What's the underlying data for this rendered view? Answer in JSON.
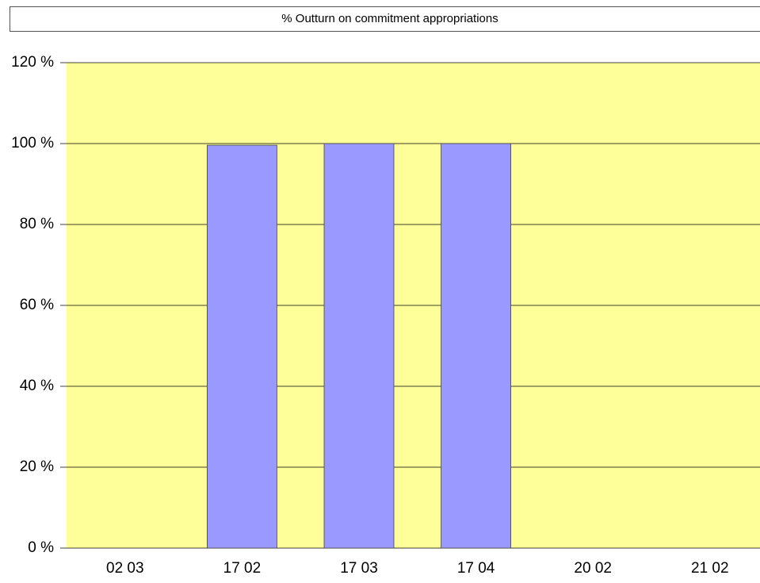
{
  "chart_data": {
    "type": "bar",
    "title": "% Outturn on commitment appropriations",
    "categories": [
      "02 03",
      "17 02",
      "17 03",
      "17 04",
      "20 02",
      "21 02"
    ],
    "values": [
      0,
      99.6,
      100,
      100,
      0,
      0
    ],
    "color": "#9999ff",
    "ylim": [
      0,
      120
    ],
    "yticks": [
      {
        "value": 0,
        "label": "0 %"
      },
      {
        "value": 20,
        "label": "20 %"
      },
      {
        "value": 40,
        "label": "40 %"
      },
      {
        "value": 60,
        "label": "60 %"
      },
      {
        "value": 80,
        "label": "80 %"
      },
      {
        "value": 100,
        "label": "100 %"
      },
      {
        "value": 120,
        "label": "120 %"
      }
    ],
    "grid": true
  }
}
